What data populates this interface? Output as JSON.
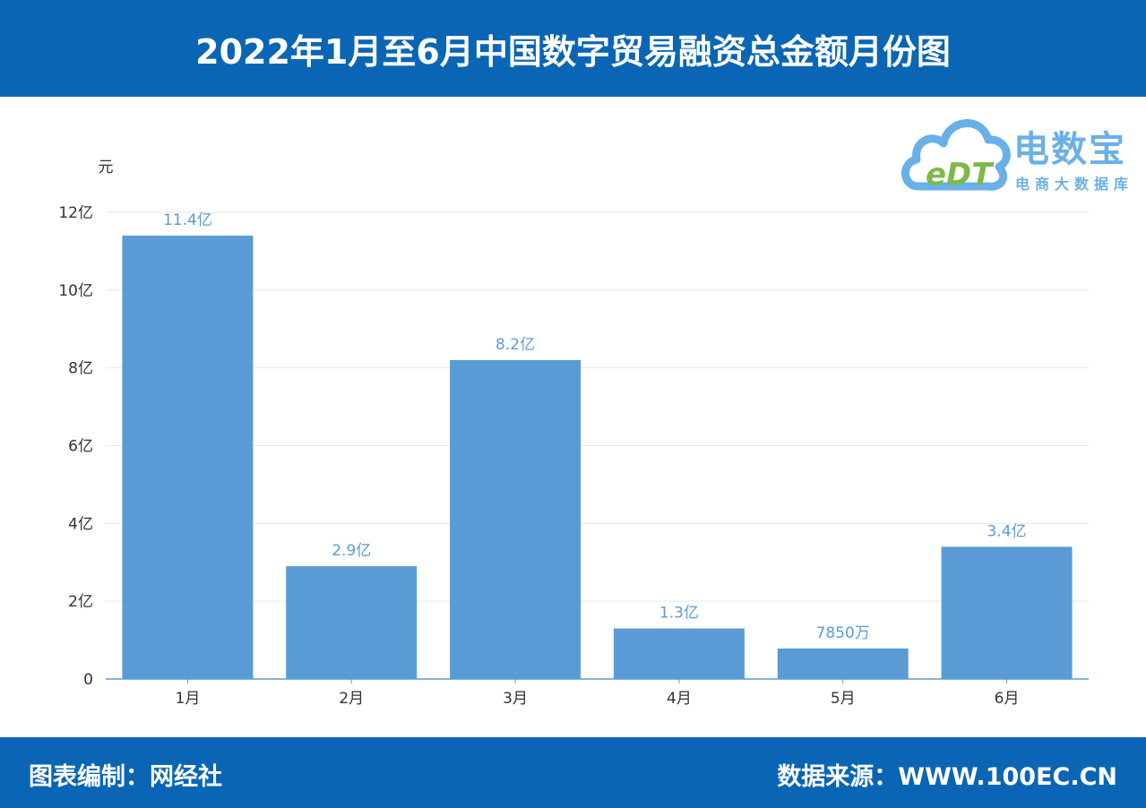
{
  "header": {
    "title": "2022年1月至6月中国数字贸易融资总金额月份图"
  },
  "footer": {
    "left_text": "图表编制：网经社",
    "right_text": "数据来源：WWW.100EC.CN"
  },
  "logo": {
    "brand": "电数宝",
    "tagline": "电商大数据库",
    "mark_text": "eDT",
    "icon": "cloud-icon"
  },
  "colors": {
    "header_bg": "#0a66b5",
    "bar": "#5b9bd5",
    "value_label": "#5b9bd5"
  },
  "chart_data": {
    "type": "bar",
    "unit_label": "元",
    "categories": [
      "1月",
      "2月",
      "3月",
      "4月",
      "5月",
      "6月"
    ],
    "values": [
      1140000000,
      290000000,
      820000000,
      130000000,
      78500000,
      340000000
    ],
    "value_labels": [
      "11.4亿",
      "2.9亿",
      "8.2亿",
      "1.3亿",
      "7850万",
      "3.4亿"
    ],
    "yticks": [
      {
        "value": 0,
        "label": "0"
      },
      {
        "value": 200000000,
        "label": "2亿"
      },
      {
        "value": 400000000,
        "label": "4亿"
      },
      {
        "value": 600000000,
        "label": "6亿"
      },
      {
        "value": 800000000,
        "label": "8亿"
      },
      {
        "value": 1000000000,
        "label": "10亿"
      },
      {
        "value": 1200000000,
        "label": "12亿"
      }
    ],
    "ylim": [
      0,
      1200000000
    ],
    "grid": true,
    "legend": "none"
  }
}
